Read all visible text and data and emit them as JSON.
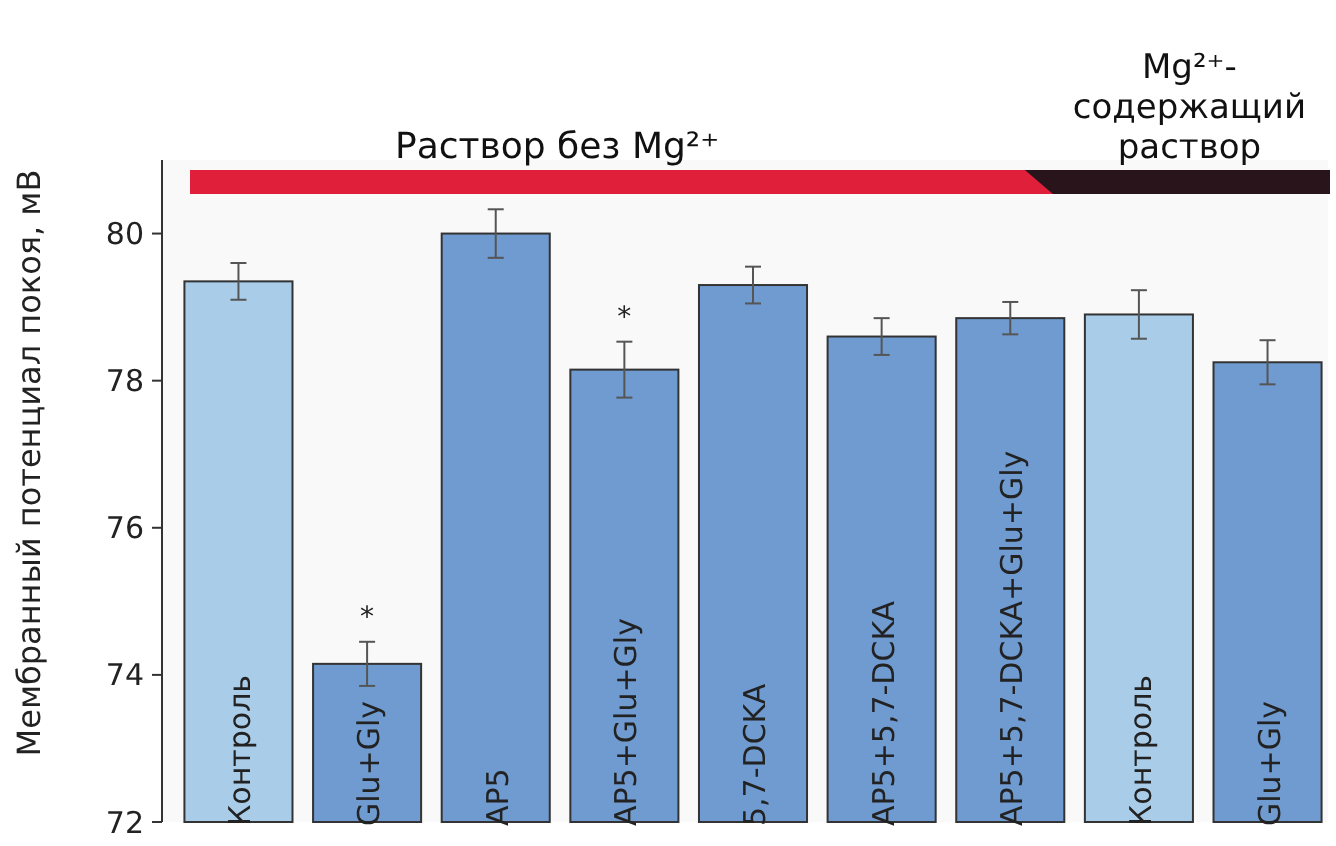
{
  "chart_data": {
    "type": "bar",
    "ylabel": "Мембранный потенциал покоя, мВ",
    "categories": [
      "Контроль",
      "Glu+Gly",
      "AP5",
      "AP5+Glu+Gly",
      "5,7-DCKA",
      "AP5+5,7-DCKA",
      "AP5+5,7-DCKA+Glu+Gly",
      "Контроль",
      "Glu+Gly"
    ],
    "values": [
      79.35,
      74.15,
      80.0,
      78.15,
      79.3,
      78.6,
      78.85,
      78.9,
      78.25
    ],
    "errors": [
      0.25,
      0.3,
      0.33,
      0.38,
      0.25,
      0.25,
      0.22,
      0.33,
      0.3
    ],
    "colors": [
      "#a9cde9",
      "#6f9bd0",
      "#6f9bd0",
      "#6f9bd0",
      "#6f9bd0",
      "#6f9bd0",
      "#6f9bd0",
      "#a9cde9",
      "#6f9bd0"
    ],
    "ylim": [
      72,
      81
    ],
    "yticks": [
      72,
      74,
      76,
      78,
      80
    ],
    "grid": false,
    "annotations": [
      "*",
      "*",
      "Раствор без Mg²⁺",
      "Mg²⁺-содержащий раствор"
    ]
  }
}
